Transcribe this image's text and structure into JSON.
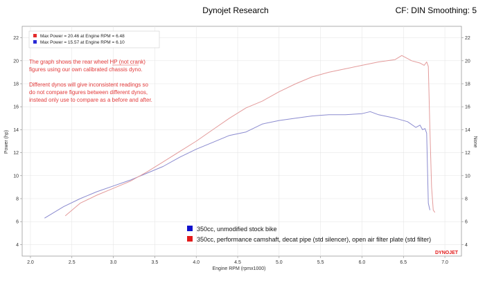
{
  "header": {
    "title": "Dynojet Research",
    "settings": "CF: DIN Smoothing: 5"
  },
  "chart_data": {
    "type": "line",
    "xlabel": "Engine RPM (rpmx1000)",
    "ylabel": "Power (hp)",
    "ylabel_right": "None",
    "xlim": [
      1.9,
      7.2
    ],
    "ylim": [
      3,
      23
    ],
    "x_ticks": [
      "2.0",
      "2.5",
      "3.0",
      "3.5",
      "4.0",
      "4.5",
      "5.0",
      "5.5",
      "6.0",
      "6.5",
      "7.0"
    ],
    "y_ticks": [
      "4",
      "6",
      "8",
      "10",
      "12",
      "14",
      "16",
      "18",
      "20",
      "22"
    ],
    "grid": true,
    "max_labels": [
      {
        "text": "Max Power = 20.46 at Engine RPM = 6.48",
        "color": "#e32b2b"
      },
      {
        "text": "Max Power = 15.57 at Engine RPM = 6.10",
        "color": "#2a2ad6"
      }
    ],
    "annotation": [
      "The graph shows the rear wheel HP (not crank)",
      "figures using our own calibrated chassis dyno.",
      "",
      "Different dynos will give inconsistent readings so",
      "do not compare figures between different dynos,",
      "instead only use to compare as a before and after."
    ],
    "series": [
      {
        "name": "350cc, unmodified stock bike",
        "color": "#8a8acf",
        "legend_color": "#1111cc",
        "x": [
          2.17,
          2.4,
          2.6,
          2.8,
          3.0,
          3.2,
          3.4,
          3.6,
          3.8,
          4.0,
          4.2,
          4.4,
          4.6,
          4.8,
          5.0,
          5.2,
          5.4,
          5.6,
          5.8,
          6.0,
          6.1,
          6.2,
          6.4,
          6.55,
          6.65,
          6.7,
          6.73,
          6.76,
          6.78,
          6.8,
          6.82
        ],
        "y": [
          6.3,
          7.3,
          8.0,
          8.6,
          9.1,
          9.6,
          10.2,
          10.8,
          11.6,
          12.3,
          12.9,
          13.5,
          13.8,
          14.5,
          14.8,
          15.0,
          15.2,
          15.3,
          15.3,
          15.4,
          15.57,
          15.3,
          15.0,
          14.7,
          14.2,
          14.4,
          14.0,
          14.1,
          13.7,
          7.6,
          7.0
        ]
      },
      {
        "name": "350cc, performance camshaft, decat pipe (std silencer), open air filter plate (std filter)",
        "color": "#e39a9a",
        "legend_color": "#e31a1a",
        "x": [
          2.42,
          2.6,
          2.8,
          3.0,
          3.2,
          3.4,
          3.6,
          3.8,
          4.0,
          4.2,
          4.4,
          4.6,
          4.8,
          5.0,
          5.2,
          5.4,
          5.6,
          5.8,
          6.0,
          6.2,
          6.4,
          6.48,
          6.6,
          6.7,
          6.75,
          6.78,
          6.8,
          6.82,
          6.84,
          6.86,
          6.88
        ],
        "y": [
          6.5,
          7.6,
          8.3,
          8.9,
          9.5,
          10.3,
          11.2,
          12.1,
          13.0,
          14.0,
          15.0,
          15.9,
          16.5,
          17.3,
          18.0,
          18.6,
          19.0,
          19.3,
          19.6,
          19.9,
          20.1,
          20.46,
          20.0,
          19.8,
          19.6,
          19.9,
          19.5,
          14.0,
          9.0,
          7.0,
          6.8
        ]
      }
    ]
  },
  "branding": "DYNOJET"
}
